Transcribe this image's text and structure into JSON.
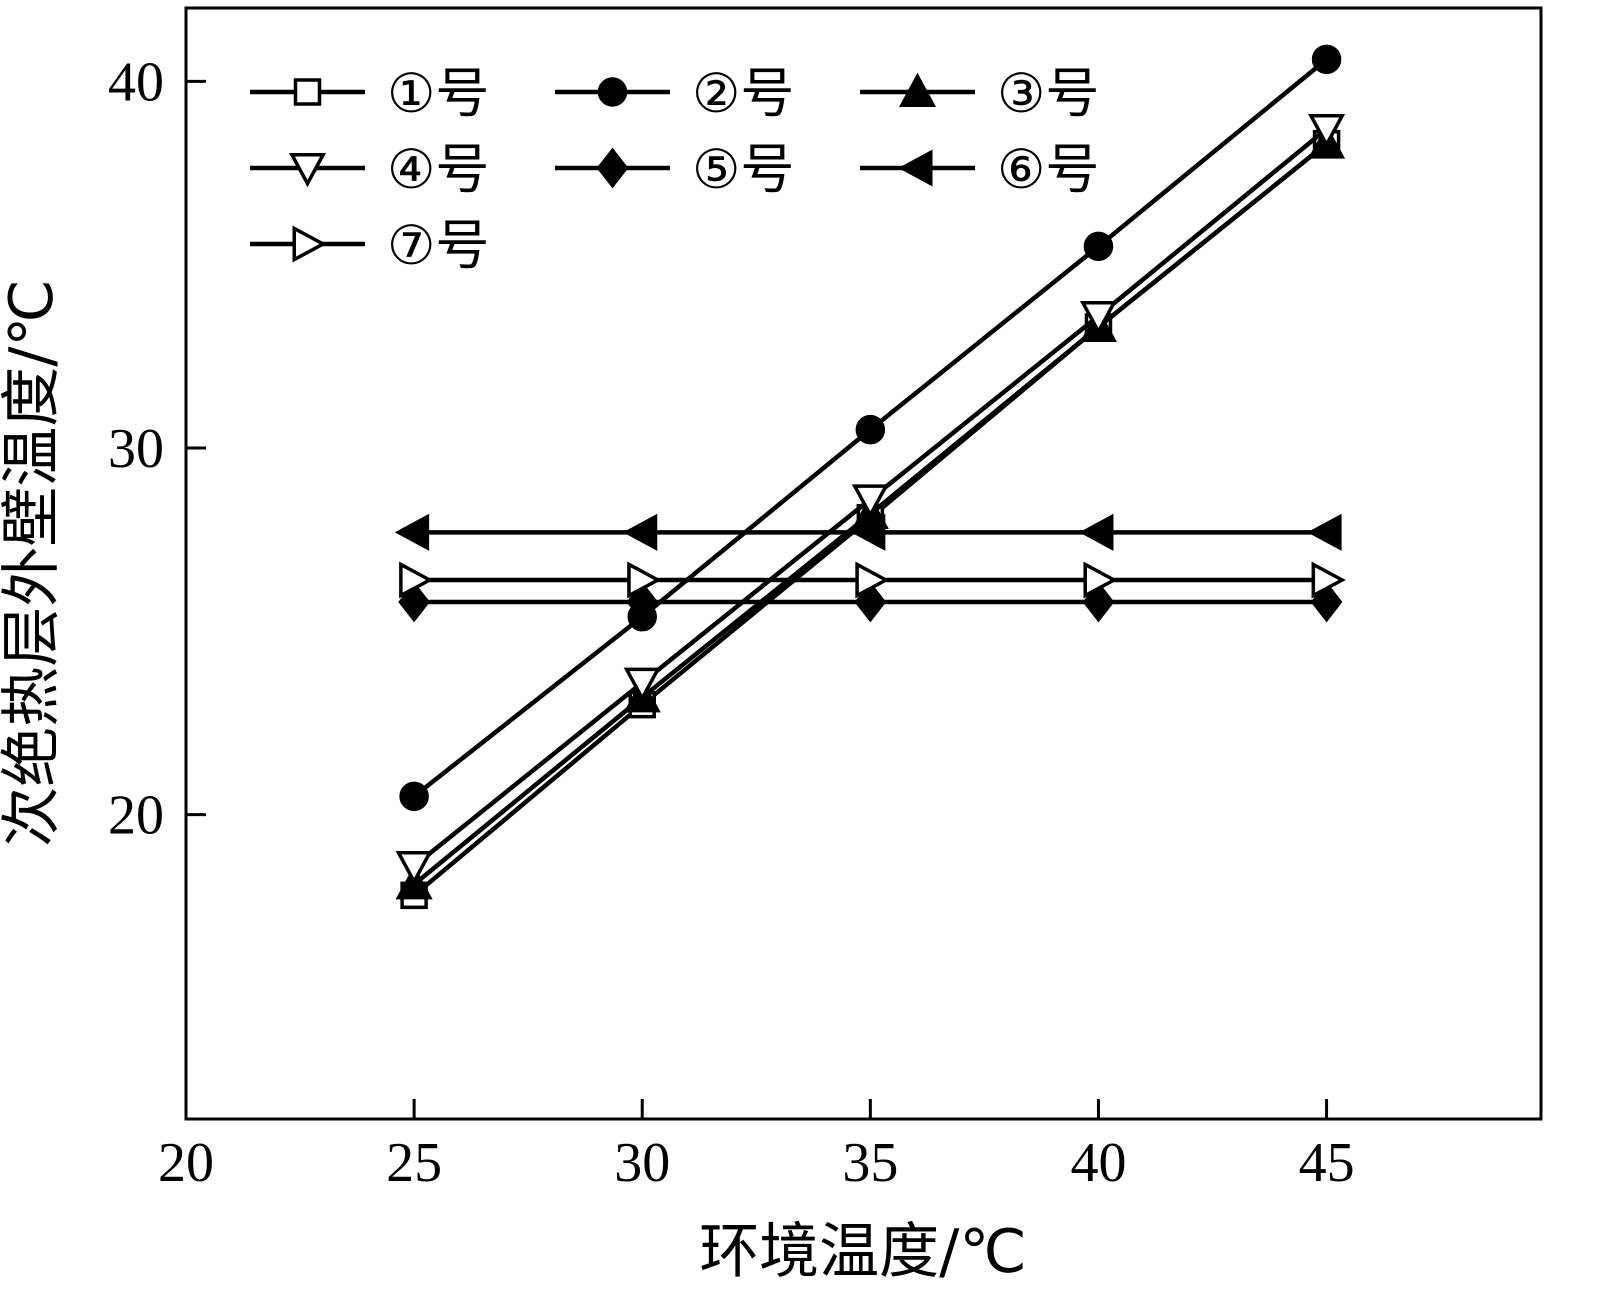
{
  "figure": {
    "background_color": "#ffffff",
    "line_color": "#000000"
  },
  "chart_data": {
    "type": "line",
    "title": "",
    "xlabel": "环境温度/℃",
    "ylabel": "次绝热层外壁温度/℃",
    "x": [
      25,
      30,
      35,
      40,
      45
    ],
    "xlim": [
      20,
      49.7
    ],
    "ylim": [
      11.7,
      42.0
    ],
    "xticks": [
      20,
      25,
      30,
      35,
      40,
      45
    ],
    "yticks": [
      20,
      30,
      40
    ],
    "grid": false,
    "legend_position": "top-left-inside",
    "legend_columns": 3,
    "series": [
      {
        "name": "①号",
        "marker": "square-open",
        "color": "#000000",
        "values": [
          17.8,
          23.0,
          28.1,
          33.3,
          38.3
        ]
      },
      {
        "name": "②号",
        "marker": "circle-filled",
        "color": "#000000",
        "values": [
          20.5,
          25.4,
          30.5,
          35.5,
          40.6
        ]
      },
      {
        "name": "③号",
        "marker": "triangle-up-filled",
        "color": "#000000",
        "values": [
          18.1,
          23.2,
          28.2,
          33.3,
          38.3
        ]
      },
      {
        "name": "④号",
        "marker": "triangle-down-open",
        "color": "#000000",
        "values": [
          18.6,
          23.6,
          28.6,
          33.6,
          38.7
        ]
      },
      {
        "name": "⑤号",
        "marker": "diamond-filled",
        "color": "#000000",
        "values": [
          25.8,
          25.8,
          25.8,
          25.8,
          25.8
        ]
      },
      {
        "name": "⑥号",
        "marker": "triangle-left-filled",
        "color": "#000000",
        "values": [
          27.7,
          27.7,
          27.7,
          27.7,
          27.7
        ]
      },
      {
        "name": "⑦号",
        "marker": "triangle-right-open",
        "color": "#000000",
        "values": [
          26.4,
          26.4,
          26.4,
          26.4,
          26.4
        ]
      }
    ]
  }
}
